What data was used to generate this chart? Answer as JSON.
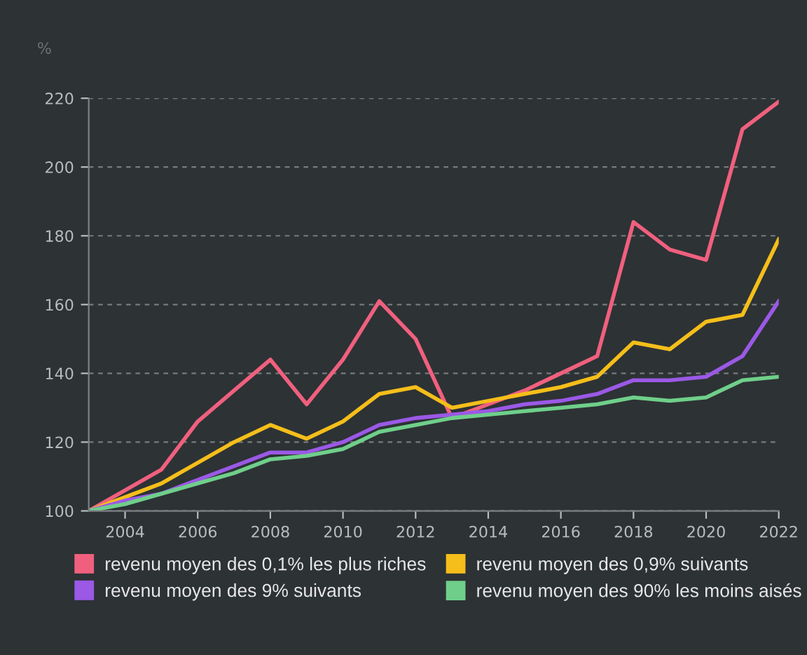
{
  "chart_data": {
    "type": "line",
    "ylabel": "%",
    "x": [
      2003,
      2004,
      2005,
      2006,
      2007,
      2008,
      2009,
      2010,
      2011,
      2012,
      2013,
      2014,
      2015,
      2016,
      2017,
      2018,
      2019,
      2020,
      2021,
      2022
    ],
    "series": [
      {
        "name": "revenu moyen des 0,1% les plus riches",
        "color": "#f0607e",
        "values": [
          100,
          106,
          112,
          126,
          135,
          144,
          131,
          144,
          161,
          150,
          127,
          131,
          135,
          140,
          145,
          184,
          176,
          173,
          211,
          219
        ]
      },
      {
        "name": "revenu moyen des 0,9% suivants",
        "color": "#f5be1a",
        "values": [
          100,
          104,
          108,
          114,
          120,
          125,
          121,
          126,
          134,
          136,
          130,
          132,
          134,
          136,
          139,
          149,
          147,
          155,
          157,
          179
        ]
      },
      {
        "name": "revenu moyen des 9% suivants",
        "color": "#9b59e6",
        "values": [
          100,
          103,
          105,
          109,
          113,
          117,
          117,
          120,
          125,
          127,
          128,
          129,
          131,
          132,
          134,
          138,
          138,
          139,
          145,
          161
        ]
      },
      {
        "name": "revenu moyen des 90% les moins aisés",
        "color": "#6fcf8a",
        "values": [
          100,
          102,
          105,
          108,
          111,
          115,
          116,
          118,
          123,
          125,
          127,
          128,
          129,
          130,
          131,
          133,
          132,
          133,
          138,
          139
        ]
      }
    ],
    "xlim": [
      2003,
      2022
    ],
    "xticks": [
      2004,
      2006,
      2008,
      2010,
      2012,
      2014,
      2016,
      2018,
      2020,
      2022
    ],
    "ylim": [
      100,
      220
    ],
    "yticks": [
      100,
      120,
      140,
      160,
      180,
      200,
      220
    ],
    "grid": "y",
    "legend": "bottom",
    "marker": "none",
    "line_style": "solid"
  }
}
